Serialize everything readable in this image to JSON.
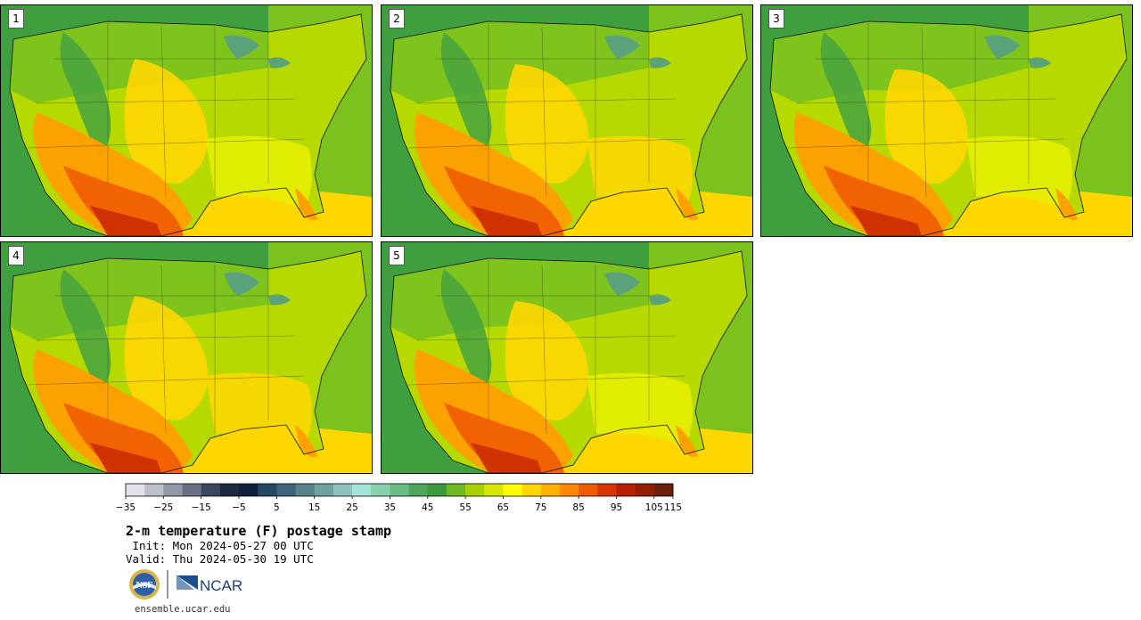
{
  "stamps": [
    {
      "label": "1",
      "palette": [
        "#4aa53c",
        "#7cc21f",
        "#b6d900",
        "#e8ef00",
        "#ffd700",
        "#ff9f00",
        "#f06000",
        "#cc2f00"
      ]
    },
    {
      "label": "2",
      "palette": [
        "#4aa53c",
        "#7cc21f",
        "#b6d900",
        "#e8ef00",
        "#ffd700",
        "#ff9f00",
        "#f06000",
        "#cc2f00"
      ]
    },
    {
      "label": "3",
      "palette": [
        "#4aa53c",
        "#7cc21f",
        "#b6d900",
        "#e8ef00",
        "#ffd700",
        "#ff9f00",
        "#f06000",
        "#cc2f00"
      ]
    },
    {
      "label": "4",
      "palette": [
        "#4aa53c",
        "#7cc21f",
        "#b6d900",
        "#e8ef00",
        "#ffd700",
        "#ff9f00",
        "#f06000",
        "#cc2f00"
      ]
    },
    {
      "label": "5",
      "palette": [
        "#4aa53c",
        "#7cc21f",
        "#b6d900",
        "#e8ef00",
        "#ffd700",
        "#ff9f00",
        "#f06000",
        "#cc2f00"
      ]
    }
  ],
  "colorbar": {
    "ticks": [
      "−35",
      "−25",
      "−15",
      "−5",
      "5",
      "15",
      "25",
      "35",
      "45",
      "55",
      "65",
      "75",
      "85",
      "95",
      "105",
      "115"
    ],
    "colors": [
      "#e1e3e8",
      "#bcc0c8",
      "#9298a6",
      "#6a7186",
      "#3b4660",
      "#1e2a42",
      "#11203a",
      "#244764",
      "#3d6478",
      "#568489",
      "#6fa3a0",
      "#8cc3bf",
      "#a5e3d8",
      "#85d2ac",
      "#68bd82",
      "#4ea55c",
      "#3b9a3e",
      "#6db91f",
      "#a9d100",
      "#d7e800",
      "#ffff00",
      "#ffd700",
      "#ffb000",
      "#ff8800",
      "#f05a00",
      "#d73600",
      "#b81f00",
      "#922000",
      "#6b1e0c"
    ]
  },
  "title": "2-m temperature (F) postage stamp",
  "init": " Init: Mon 2024-05-27 00 UTC",
  "valid": "Valid: Thu 2024-05-30 19 UTC",
  "logos": {
    "nsf": "NSF",
    "ncar": "NCAR"
  },
  "site": "ensemble.ucar.edu"
}
